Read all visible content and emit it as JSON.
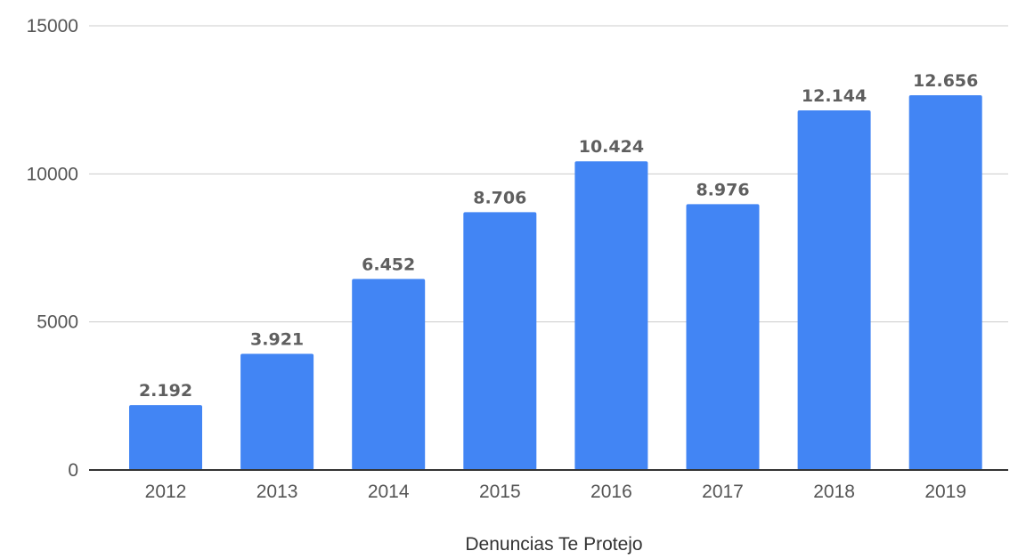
{
  "chart_data": {
    "type": "bar",
    "categories": [
      "2012",
      "2013",
      "2014",
      "2015",
      "2016",
      "2017",
      "2018",
      "2019"
    ],
    "series": [
      {
        "values": [
          2192,
          3921,
          6452,
          8706,
          10424,
          8976,
          12144,
          12656
        ],
        "value_labels": [
          "2.192",
          "3.921",
          "6.452",
          "8.706",
          "10.424",
          "8.976",
          "12.144",
          "12.656"
        ]
      }
    ],
    "y_ticks": [
      "0",
      "5000",
      "10000",
      "15000"
    ],
    "ylim": [
      0,
      15000
    ],
    "xlabel": "Denuncias Te Protejo",
    "ylabel": "",
    "title": "",
    "grid": true,
    "legend": "none",
    "colors": {
      "bar": "#4285f4",
      "grid": "#cccccc",
      "axis": "#333333"
    }
  }
}
